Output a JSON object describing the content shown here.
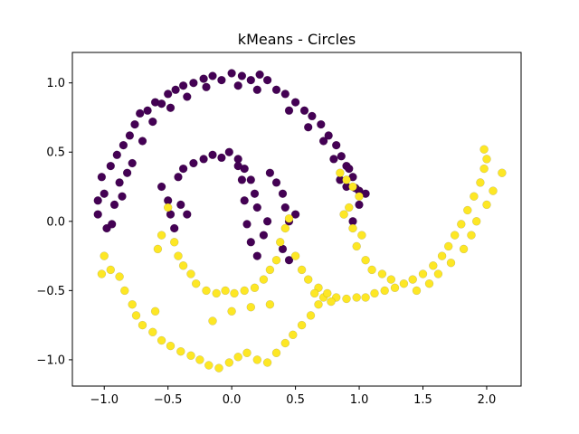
{
  "chart_data": {
    "type": "scatter",
    "title": "kMeans - Circles",
    "xlabel": "",
    "ylabel": "",
    "xlim": [
      -1.25,
      2.27
    ],
    "ylim": [
      -1.19,
      1.22
    ],
    "x_ticks": [
      -1.0,
      -0.5,
      0.0,
      0.5,
      1.0,
      1.5,
      2.0
    ],
    "x_tick_labels": [
      "−1.0",
      "−0.5",
      "0.0",
      "0.5",
      "1.0",
      "1.5",
      "2.0"
    ],
    "y_ticks": [
      -1.0,
      -0.5,
      0.0,
      0.5,
      1.0
    ],
    "y_tick_labels": [
      "−1.0",
      "−0.5",
      "0.0",
      "0.5",
      "1.0"
    ],
    "grid": false,
    "legend": "none",
    "series": [
      {
        "color": "#440154",
        "points": [
          [
            -1.0,
            0.2
          ],
          [
            -1.05,
            0.05
          ],
          [
            -0.98,
            -0.05
          ],
          [
            -1.02,
            0.32
          ],
          [
            -0.95,
            0.4
          ],
          [
            -0.9,
            0.48
          ],
          [
            -0.88,
            0.28
          ],
          [
            -0.85,
            0.55
          ],
          [
            -0.8,
            0.62
          ],
          [
            -0.76,
            0.7
          ],
          [
            -0.72,
            0.78
          ],
          [
            -0.66,
            0.8
          ],
          [
            -0.6,
            0.86
          ],
          [
            -0.55,
            0.85
          ],
          [
            -0.5,
            0.92
          ],
          [
            -0.44,
            0.95
          ],
          [
            -0.38,
            0.98
          ],
          [
            -0.3,
            1.0
          ],
          [
            -0.22,
            1.03
          ],
          [
            -0.15,
            1.05
          ],
          [
            -0.08,
            1.02
          ],
          [
            0.0,
            1.07
          ],
          [
            0.08,
            1.05
          ],
          [
            0.15,
            1.02
          ],
          [
            0.22,
            1.06
          ],
          [
            0.28,
            1.02
          ],
          [
            0.35,
            0.95
          ],
          [
            0.42,
            0.92
          ],
          [
            0.5,
            0.86
          ],
          [
            0.57,
            0.8
          ],
          [
            0.63,
            0.76
          ],
          [
            0.7,
            0.7
          ],
          [
            0.76,
            0.62
          ],
          [
            0.82,
            0.55
          ],
          [
            0.86,
            0.47
          ],
          [
            0.9,
            0.4
          ],
          [
            0.95,
            0.32
          ],
          [
            0.97,
            0.24
          ],
          [
            1.0,
            0.22
          ],
          [
            1.05,
            0.2
          ],
          [
            -0.92,
            0.12
          ],
          [
            -0.86,
            0.18
          ],
          [
            -0.78,
            0.42
          ],
          [
            -0.7,
            0.58
          ],
          [
            -0.62,
            0.72
          ],
          [
            -0.48,
            0.82
          ],
          [
            -0.35,
            0.9
          ],
          [
            -0.2,
            0.97
          ],
          [
            0.05,
            0.98
          ],
          [
            0.2,
            0.95
          ],
          [
            0.45,
            0.8
          ],
          [
            0.6,
            0.68
          ],
          [
            0.72,
            0.58
          ],
          [
            0.8,
            0.45
          ],
          [
            -1.05,
            0.15
          ],
          [
            -0.94,
            -0.02
          ],
          [
            -0.82,
            0.35
          ],
          [
            0.9,
            0.25
          ],
          [
            0.85,
            0.3
          ],
          [
            0.92,
            0.38
          ],
          [
            -0.55,
            0.25
          ],
          [
            -0.5,
            0.15
          ],
          [
            -0.48,
            0.05
          ],
          [
            -0.45,
            -0.05
          ],
          [
            -0.42,
            0.32
          ],
          [
            -0.38,
            0.38
          ],
          [
            -0.3,
            0.42
          ],
          [
            -0.22,
            0.45
          ],
          [
            -0.15,
            0.48
          ],
          [
            -0.08,
            0.46
          ],
          [
            -0.02,
            0.5
          ],
          [
            0.05,
            0.45
          ],
          [
            0.1,
            0.38
          ],
          [
            0.15,
            0.3
          ],
          [
            0.18,
            0.2
          ],
          [
            0.2,
            0.1
          ],
          [
            0.15,
            -0.15
          ],
          [
            0.2,
            -0.25
          ],
          [
            0.25,
            -0.1
          ],
          [
            0.28,
            0.0
          ],
          [
            0.3,
            0.35
          ],
          [
            0.35,
            0.28
          ],
          [
            0.4,
            0.2
          ],
          [
            0.42,
            0.1
          ],
          [
            0.45,
            0.0
          ],
          [
            0.5,
            0.05
          ],
          [
            0.4,
            -0.2
          ],
          [
            0.45,
            -0.28
          ],
          [
            -0.35,
            0.05
          ],
          [
            -0.4,
            0.12
          ],
          [
            0.05,
            0.4
          ],
          [
            0.08,
            0.3
          ],
          [
            0.1,
            0.15
          ],
          [
            0.12,
            -0.02
          ],
          [
            0.95,
            0.0
          ],
          [
            1.0,
            0.12
          ]
        ]
      },
      {
        "color": "#fde725",
        "points": [
          [
            -1.0,
            -0.25
          ],
          [
            -1.02,
            -0.38
          ],
          [
            -0.95,
            -0.35
          ],
          [
            -0.88,
            -0.4
          ],
          [
            -0.84,
            -0.5
          ],
          [
            -0.78,
            -0.6
          ],
          [
            -0.75,
            -0.68
          ],
          [
            -0.7,
            -0.75
          ],
          [
            -0.62,
            -0.8
          ],
          [
            -0.55,
            -0.86
          ],
          [
            -0.48,
            -0.9
          ],
          [
            -0.4,
            -0.94
          ],
          [
            -0.32,
            -0.97
          ],
          [
            -0.25,
            -1.0
          ],
          [
            -0.18,
            -1.04
          ],
          [
            -0.1,
            -1.06
          ],
          [
            -0.02,
            -1.02
          ],
          [
            0.05,
            -0.98
          ],
          [
            0.12,
            -0.95
          ],
          [
            0.2,
            -1.0
          ],
          [
            0.28,
            -1.02
          ],
          [
            0.35,
            -0.95
          ],
          [
            0.42,
            -0.88
          ],
          [
            0.48,
            -0.82
          ],
          [
            0.55,
            -0.75
          ],
          [
            0.62,
            -0.68
          ],
          [
            0.68,
            -0.6
          ],
          [
            0.72,
            -0.55
          ],
          [
            -0.5,
            0.1
          ],
          [
            -0.45,
            -0.15
          ],
          [
            -0.42,
            -0.25
          ],
          [
            -0.38,
            -0.32
          ],
          [
            -0.32,
            -0.38
          ],
          [
            -0.28,
            -0.45
          ],
          [
            -0.2,
            -0.5
          ],
          [
            -0.12,
            -0.52
          ],
          [
            -0.05,
            -0.5
          ],
          [
            0.02,
            -0.52
          ],
          [
            0.1,
            -0.5
          ],
          [
            0.18,
            -0.48
          ],
          [
            0.25,
            -0.42
          ],
          [
            0.3,
            -0.35
          ],
          [
            0.35,
            -0.28
          ],
          [
            0.38,
            -0.15
          ],
          [
            0.42,
            -0.05
          ],
          [
            0.45,
            0.02
          ],
          [
            0.5,
            -0.25
          ],
          [
            0.55,
            -0.35
          ],
          [
            0.6,
            -0.42
          ],
          [
            0.68,
            -0.48
          ],
          [
            0.75,
            -0.52
          ],
          [
            0.82,
            -0.55
          ],
          [
            0.9,
            -0.56
          ],
          [
            0.98,
            -0.55
          ],
          [
            1.05,
            -0.55
          ],
          [
            1.12,
            -0.52
          ],
          [
            1.2,
            -0.5
          ],
          [
            1.28,
            -0.48
          ],
          [
            1.35,
            -0.45
          ],
          [
            1.42,
            -0.42
          ],
          [
            1.5,
            -0.38
          ],
          [
            1.58,
            -0.32
          ],
          [
            1.65,
            -0.25
          ],
          [
            1.7,
            -0.18
          ],
          [
            1.75,
            -0.1
          ],
          [
            1.8,
            -0.02
          ],
          [
            1.85,
            0.08
          ],
          [
            1.9,
            0.18
          ],
          [
            1.95,
            0.28
          ],
          [
            1.98,
            0.38
          ],
          [
            2.0,
            0.45
          ],
          [
            1.98,
            0.52
          ],
          [
            2.12,
            0.35
          ],
          [
            2.05,
            0.22
          ],
          [
            2.0,
            0.12
          ],
          [
            0.85,
            0.35
          ],
          [
            0.9,
            0.3
          ],
          [
            0.95,
            0.25
          ],
          [
            1.0,
            0.18
          ],
          [
            0.92,
            0.1
          ],
          [
            0.95,
            -0.05
          ],
          [
            0.98,
            -0.18
          ],
          [
            1.05,
            -0.28
          ],
          [
            1.1,
            -0.35
          ],
          [
            1.18,
            -0.38
          ],
          [
            1.25,
            -0.42
          ],
          [
            -0.55,
            -0.1
          ],
          [
            -0.58,
            -0.2
          ],
          [
            0.65,
            -0.52
          ],
          [
            0.78,
            -0.58
          ],
          [
            1.45,
            -0.5
          ],
          [
            1.55,
            -0.45
          ],
          [
            1.62,
            -0.38
          ],
          [
            1.72,
            -0.3
          ],
          [
            1.82,
            -0.2
          ],
          [
            1.88,
            -0.1
          ],
          [
            1.92,
            0.0
          ],
          [
            -0.6,
            -0.65
          ],
          [
            -0.15,
            -0.72
          ],
          [
            0.0,
            -0.65
          ],
          [
            0.15,
            -0.62
          ],
          [
            0.3,
            -0.6
          ],
          [
            0.88,
            0.05
          ],
          [
            1.02,
            -0.1
          ]
        ]
      }
    ]
  }
}
